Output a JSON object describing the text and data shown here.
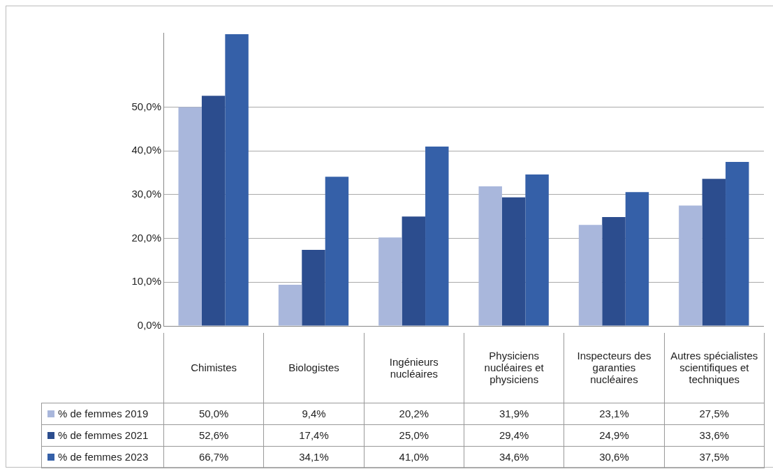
{
  "chart_data": {
    "type": "bar",
    "categories": [
      "Chimistes",
      "Biologistes",
      "Ingénieurs nucléaires",
      "Physiciens nucléaires et physiciens",
      "Inspecteurs des garanties nucléaires",
      "Autres spécialistes scientifiques et techniques"
    ],
    "series": [
      {
        "name": "% de femmes 2019",
        "color": "#a9b7dc",
        "values": [
          50.0,
          9.4,
          20.2,
          31.9,
          23.1,
          27.5
        ],
        "value_labels": [
          "50,0%",
          "9,4%",
          "20,2%",
          "31,9%",
          "23,1%",
          "27,5%"
        ]
      },
      {
        "name": "% de femmes 2021",
        "color": "#2c4d8e",
        "values": [
          52.6,
          17.4,
          25.0,
          29.4,
          24.9,
          33.6
        ],
        "value_labels": [
          "52,6%",
          "17,4%",
          "25,0%",
          "29,4%",
          "24,9%",
          "33,6%"
        ]
      },
      {
        "name": "% de femmes 2023",
        "color": "#3560a8",
        "values": [
          66.7,
          34.1,
          41.0,
          34.6,
          30.6,
          37.5
        ],
        "value_labels": [
          "66,7%",
          "34,1%",
          "41,0%",
          "34,6%",
          "30,6%",
          "37,5%"
        ]
      }
    ],
    "ylim": [
      0,
      67
    ],
    "yticks": [
      {
        "value": 0,
        "label": "0,0%"
      },
      {
        "value": 10,
        "label": "10,0%"
      },
      {
        "value": 20,
        "label": "20,0%"
      },
      {
        "value": 30,
        "label": "30,0%"
      },
      {
        "value": 40,
        "label": "40,0%"
      },
      {
        "value": 50,
        "label": "50,0%"
      }
    ],
    "grid": "y",
    "legend": "bottom"
  }
}
